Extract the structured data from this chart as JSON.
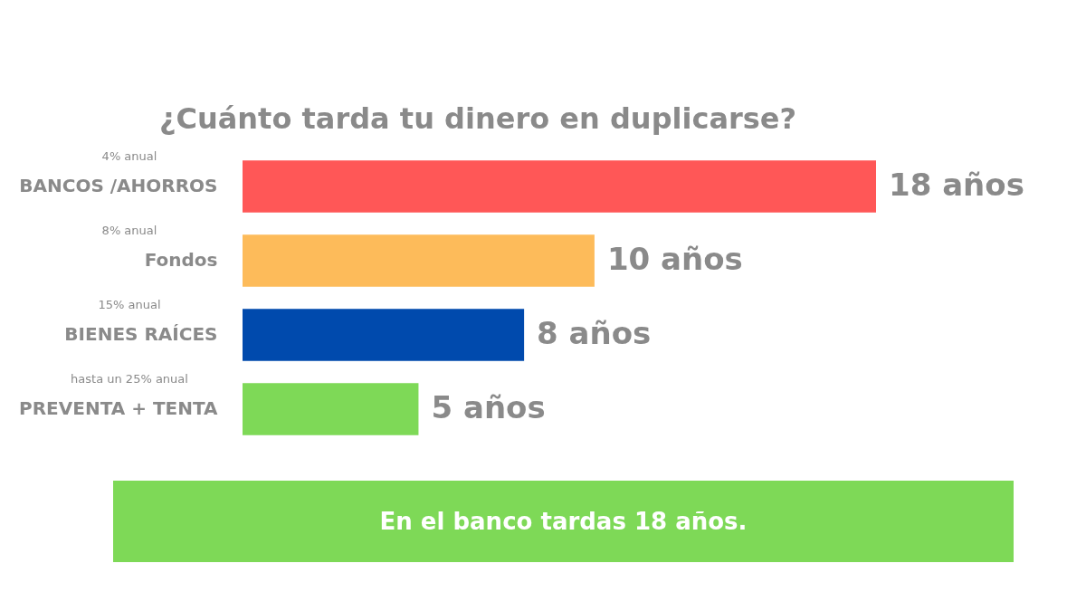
{
  "chart_data": {
    "type": "bar",
    "orientation": "horizontal",
    "title": "¿Cuánto tarda tu dinero en duplicarse?",
    "categories": [
      "BANCOS /AHORROS",
      "Fondos",
      "BIENES RAÍCES",
      "PREVENTA + TENTA"
    ],
    "values": [
      18,
      10,
      8,
      5
    ],
    "colors": [
      "#ff5757",
      "#fdbb5a",
      "#004aad",
      "#7ed957"
    ],
    "value_labels": [
      "18 años",
      "10 años",
      "8 años",
      "5 años"
    ],
    "annotations": [
      "4% anual",
      "8% anual",
      "15% anual",
      "hasta un 25% anual",
      "En el banco tardas 18 años."
    ]
  }
}
